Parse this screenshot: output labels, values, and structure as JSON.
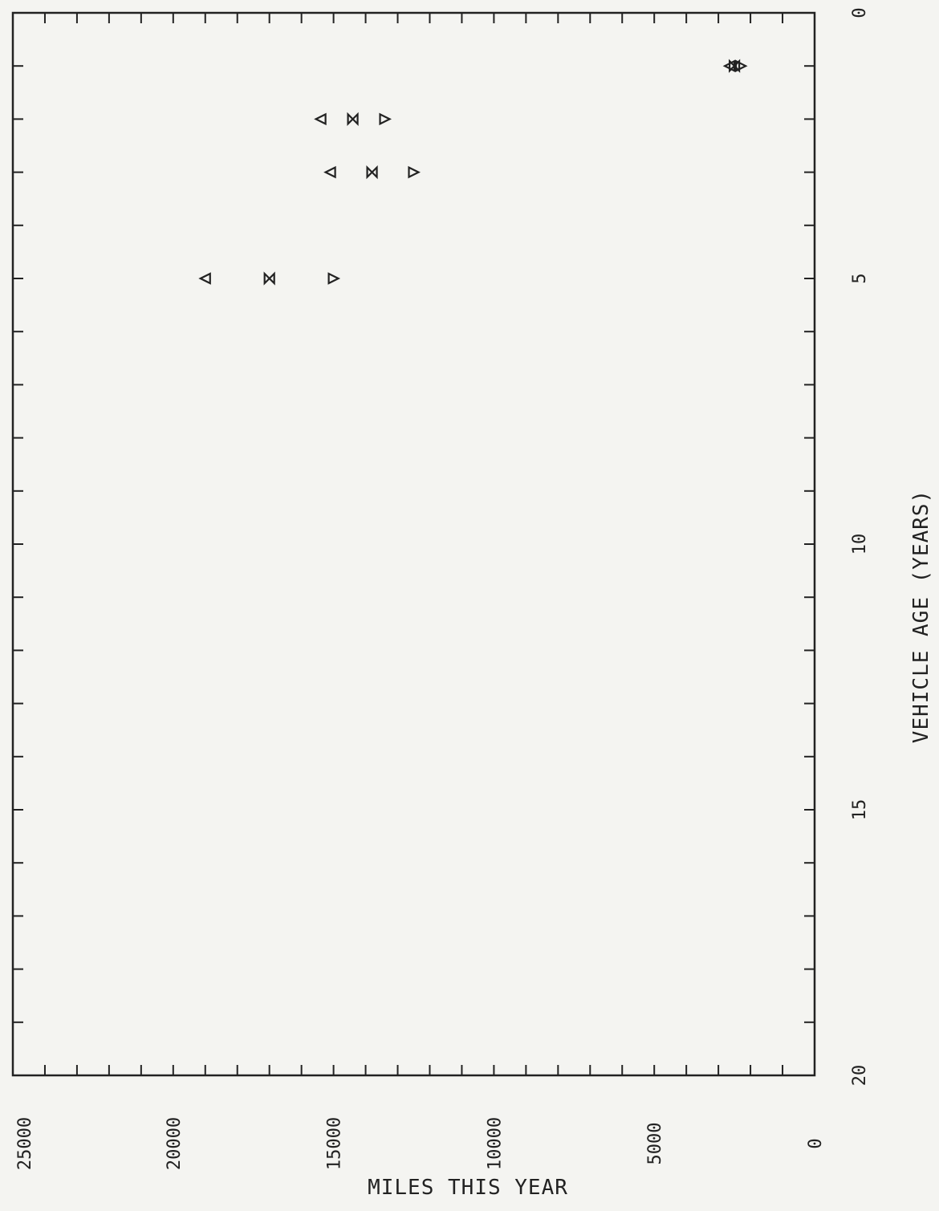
{
  "chart_data": {
    "type": "scatter",
    "title": "",
    "xlabel": "VEHICLE AGE (YEARS)",
    "ylabel": "MILES THIS YEAR",
    "xlim": [
      0,
      20
    ],
    "ylim": [
      0,
      25000
    ],
    "x_ticks": [
      0,
      5,
      10,
      15,
      20
    ],
    "x_tick_labels": [
      "0",
      "5",
      "10",
      "15",
      "20"
    ],
    "y_ticks": [
      0,
      5000,
      10000,
      15000,
      20000,
      25000
    ],
    "y_tick_labels": [
      "0",
      "5000",
      "10000",
      "15000",
      "20000",
      "25000"
    ],
    "x_minor_step": 1,
    "y_minor_step": 1000,
    "grid": false,
    "series": [
      {
        "marker": "triangle-up",
        "points": [
          [
            1,
            2650
          ],
          [
            2,
            15400
          ],
          [
            3,
            15100
          ],
          [
            5,
            19000
          ]
        ]
      },
      {
        "marker": "hourglass",
        "points": [
          [
            1,
            2500
          ],
          [
            2,
            14400
          ],
          [
            3,
            13800
          ],
          [
            5,
            17000
          ]
        ]
      },
      {
        "marker": "triangle-down",
        "points": [
          [
            1,
            2300
          ],
          [
            2,
            13400
          ],
          [
            3,
            12500
          ],
          [
            5,
            15000
          ]
        ]
      }
    ]
  }
}
